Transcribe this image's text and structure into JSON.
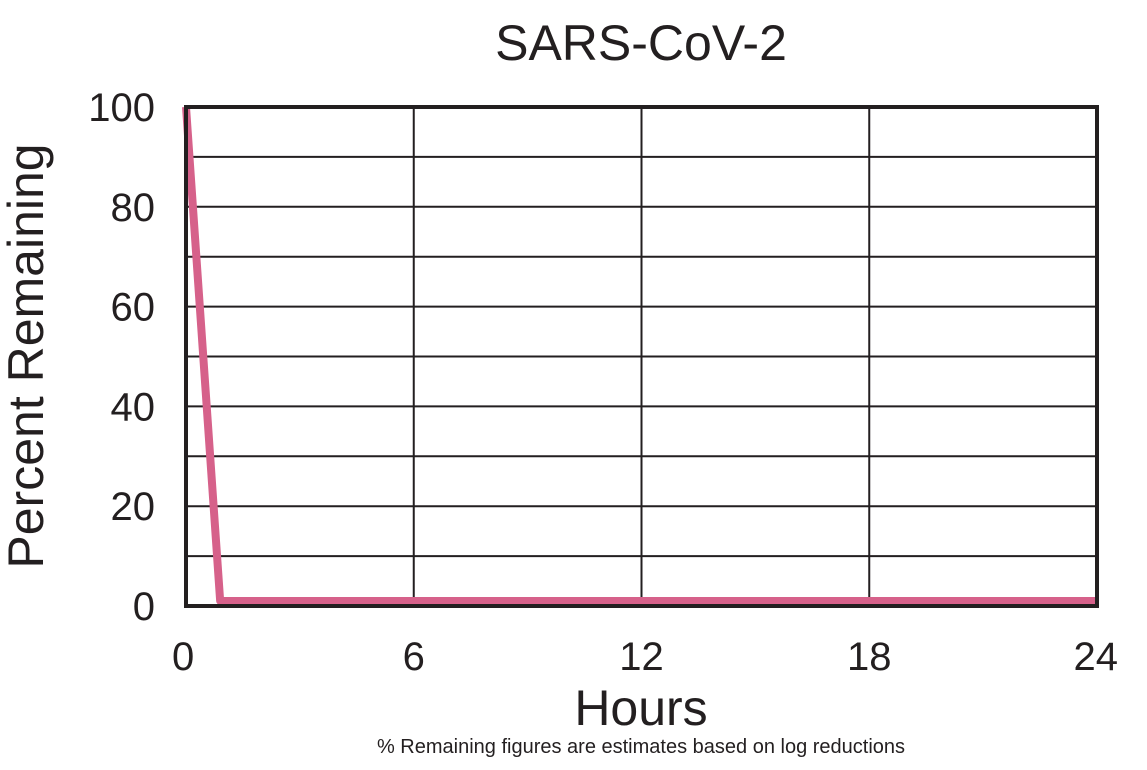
{
  "chart_data": {
    "type": "line",
    "title": "SARS-CoV-2",
    "xlabel": "Hours",
    "ylabel": "Percent Remaining",
    "footnote": "% Remaining figures are estimates based on log reductions",
    "xlim": [
      0,
      24
    ],
    "ylim": [
      0,
      100
    ],
    "x_ticks": [
      "0",
      "6",
      "12",
      "18",
      "24"
    ],
    "y_ticks": [
      "0",
      "20",
      "40",
      "60",
      "80",
      "100"
    ],
    "grid": true,
    "series": [
      {
        "color": "#d6618a",
        "x": [
          0,
          0.9,
          24
        ],
        "y": [
          100,
          1,
          1
        ]
      }
    ]
  }
}
